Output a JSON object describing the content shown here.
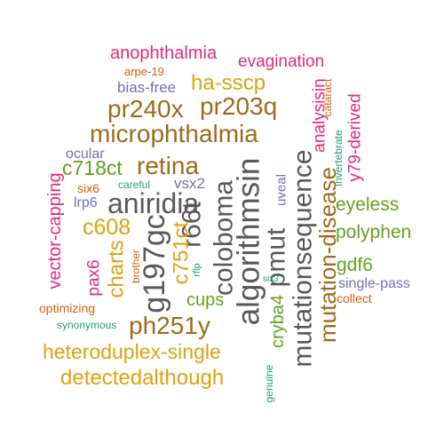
{
  "colors": {
    "gray": "#595959",
    "brown": "#9c6b1b",
    "gold": "#e0a00f",
    "green": "#64a11f",
    "teal": "#1f9e77",
    "purple": "#7270b3",
    "magenta": "#e0297a",
    "orange": "#d35f0d"
  },
  "words": [
    {
      "text": "anophthalmia",
      "color": "magenta"
    },
    {
      "text": "arpe-19",
      "color": "orange"
    },
    {
      "text": "evagination",
      "color": "magenta"
    },
    {
      "text": "bias-free",
      "color": "purple"
    },
    {
      "text": "ha-sscp",
      "color": "gold"
    },
    {
      "text": "pr240x",
      "color": "brown"
    },
    {
      "text": "pr203q",
      "color": "brown"
    },
    {
      "text": "microphthalmia",
      "color": "brown"
    },
    {
      "text": "cataract",
      "color": "orange"
    },
    {
      "text": "analysisin",
      "color": "magenta"
    },
    {
      "text": "y79-derived",
      "color": "magenta"
    },
    {
      "text": "invertebrate",
      "color": "teal"
    },
    {
      "text": "ocular",
      "color": "purple"
    },
    {
      "text": "c718ct",
      "color": "green"
    },
    {
      "text": "retina",
      "color": "brown"
    },
    {
      "text": "careful",
      "color": "teal"
    },
    {
      "text": "vsx2",
      "color": "purple"
    },
    {
      "text": "six6",
      "color": "orange"
    },
    {
      "text": "lrp6",
      "color": "purple"
    },
    {
      "text": "aniridia",
      "color": "gray"
    },
    {
      "text": "coloboma",
      "color": "gray"
    },
    {
      "text": "algorithmsin",
      "color": "gray"
    },
    {
      "text": "mutationsequence",
      "color": "gray"
    },
    {
      "text": "uveal",
      "color": "purple"
    },
    {
      "text": "mutation-disease",
      "color": "brown"
    },
    {
      "text": "eyeless",
      "color": "green"
    },
    {
      "text": "vector-capping",
      "color": "magenta"
    },
    {
      "text": "c608",
      "color": "gold"
    },
    {
      "text": "g197gc",
      "color": "gray"
    },
    {
      "text": "r66t",
      "color": "gray"
    },
    {
      "text": "c751ct",
      "color": "gold"
    },
    {
      "text": "pmut",
      "color": "gray"
    },
    {
      "text": "polyphen",
      "color": "green"
    },
    {
      "text": "charts",
      "color": "gold"
    },
    {
      "text": "brother",
      "color": "orange"
    },
    {
      "text": "rflp",
      "color": "teal"
    },
    {
      "text": "pax6",
      "color": "magenta"
    },
    {
      "text": "gdf6",
      "color": "green"
    },
    {
      "text": "six3",
      "color": "teal"
    },
    {
      "text": "single-pass",
      "color": "purple"
    },
    {
      "text": "cups",
      "color": "green"
    },
    {
      "text": "collect",
      "color": "orange"
    },
    {
      "text": "cryba4",
      "color": "green"
    },
    {
      "text": "optimizing",
      "color": "orange"
    },
    {
      "text": "ph251y",
      "color": "brown"
    },
    {
      "text": "synonymous",
      "color": "teal"
    },
    {
      "text": "heteroduplex-single",
      "color": "gold"
    },
    {
      "text": "detectedalthough",
      "color": "gold"
    },
    {
      "text": "genuine",
      "color": "teal"
    }
  ]
}
